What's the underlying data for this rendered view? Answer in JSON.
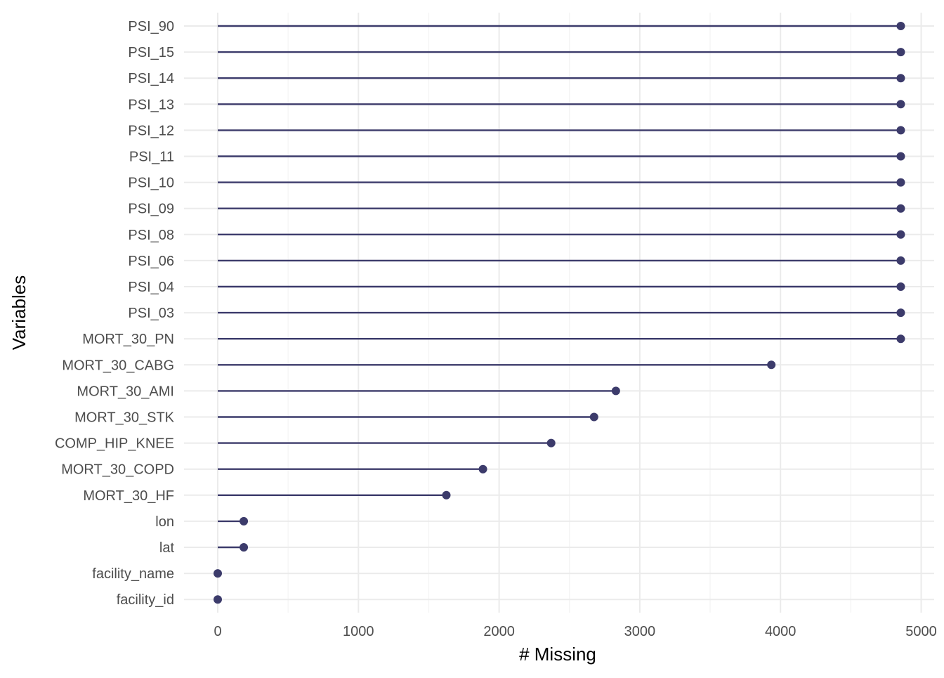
{
  "chart_data": {
    "type": "lollipop",
    "xlabel": "# Missing",
    "ylabel": "Variables",
    "xlim": [
      -250,
      5130
    ],
    "x_ticks": [
      0,
      1000,
      2000,
      3000,
      4000,
      5000
    ],
    "x_tick_labels": [
      "0",
      "1000",
      "2000",
      "3000",
      "4000",
      "5000"
    ],
    "grid": true,
    "legend": "none",
    "categories": [
      "PSI_90",
      "PSI_15",
      "PSI_14",
      "PSI_13",
      "PSI_12",
      "PSI_11",
      "PSI_10",
      "PSI_09",
      "PSI_08",
      "PSI_06",
      "PSI_04",
      "PSI_03",
      "MORT_30_PN",
      "MORT_30_CABG",
      "MORT_30_AMI",
      "MORT_30_STK",
      "COMP_HIP_KNEE",
      "MORT_30_COPD",
      "MORT_30_HF",
      "lon",
      "lat",
      "facility_name",
      "facility_id"
    ],
    "values": [
      4855,
      4855,
      4855,
      4855,
      4855,
      4855,
      4855,
      4855,
      4855,
      4855,
      4855,
      4855,
      4855,
      3935,
      2830,
      2675,
      2370,
      1885,
      1625,
      185,
      185,
      0,
      0
    ],
    "colors": {
      "mark": "#3c3b6b",
      "grid_major": "#ebebeb",
      "grid_minor": "#f3f3f3"
    }
  }
}
